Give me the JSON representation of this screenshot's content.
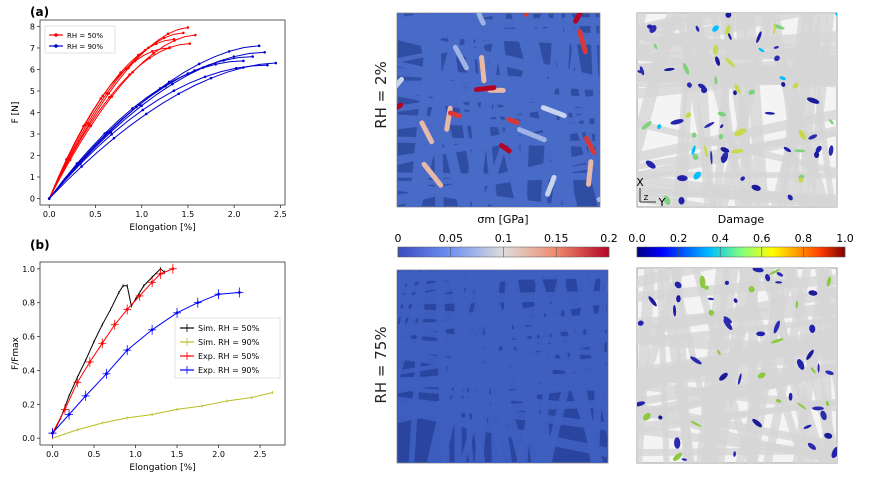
{
  "chart_data": [
    {
      "type": "line",
      "panel_label": "(a)",
      "xlabel": "Elongation [%]",
      "ylabel": "F [N]",
      "xlim": [
        -0.1,
        2.55
      ],
      "ylim": [
        -0.3,
        8.3
      ],
      "xticks": [
        "0.0",
        "0.5",
        "1.0",
        "1.5",
        "2.0",
        "2.5"
      ],
      "xtick_values": [
        0,
        0.5,
        1,
        1.5,
        2,
        2.5
      ],
      "yticks": [
        "0",
        "1",
        "2",
        "3",
        "4",
        "5",
        "6",
        "7",
        "8"
      ],
      "ytick_values": [
        0,
        1,
        2,
        3,
        4,
        5,
        6,
        7,
        8
      ],
      "legend_position": "top-left",
      "series": [
        {
          "name": "RH = 50%",
          "color": "#ff0000",
          "curves": [
            [
              1.5,
              7.95
            ],
            [
              1.58,
              7.6
            ],
            [
              1.45,
              7.7
            ],
            [
              1.35,
              7.4
            ],
            [
              1.52,
              7.2
            ],
            [
              1.3,
              7.0
            ]
          ]
        },
        {
          "name": "RH = 90%",
          "color": "#0000cc",
          "curves": [
            [
              2.27,
              7.1
            ],
            [
              2.45,
              6.3
            ],
            [
              2.33,
              6.8
            ],
            [
              2.2,
              6.6
            ],
            [
              2.1,
              6.4
            ],
            [
              2.36,
              6.2
            ]
          ]
        }
      ]
    },
    {
      "type": "line",
      "panel_label": "(b)",
      "xlabel": "Elongation [%]",
      "ylabel": "F/Fmax",
      "xlim": [
        -0.15,
        2.8
      ],
      "ylim": [
        -0.04,
        1.04
      ],
      "xticks": [
        "0.0",
        "0.5",
        "1.0",
        "1.5",
        "2.0",
        "2.5"
      ],
      "xtick_values": [
        0,
        0.5,
        1,
        1.5,
        2,
        2.5
      ],
      "yticks": [
        "0.0",
        "0.2",
        "0.4",
        "0.6",
        "0.8",
        "1.0"
      ],
      "ytick_values": [
        0,
        0.2,
        0.4,
        0.6,
        0.8,
        1.0
      ],
      "legend_position": "center-right",
      "series": [
        {
          "name": "Sim. RH = 50%",
          "color": "#000000",
          "x": [
            0,
            0.1,
            0.2,
            0.3,
            0.4,
            0.5,
            0.6,
            0.7,
            0.8,
            0.85,
            0.9,
            0.95,
            1.0,
            1.1,
            1.2,
            1.3,
            1.35
          ],
          "y": [
            0.02,
            0.12,
            0.25,
            0.36,
            0.46,
            0.57,
            0.67,
            0.76,
            0.86,
            0.9,
            0.9,
            0.78,
            0.82,
            0.9,
            0.95,
            1.0,
            0.98
          ]
        },
        {
          "name": "Sim. RH = 90%",
          "color": "#bcbd22",
          "x": [
            0,
            0.3,
            0.6,
            0.9,
            1.2,
            1.5,
            1.8,
            2.1,
            2.4,
            2.65
          ],
          "y": [
            0.0,
            0.05,
            0.09,
            0.12,
            0.14,
            0.17,
            0.19,
            0.22,
            0.24,
            0.27
          ]
        },
        {
          "name": "Exp. RH = 50%",
          "color": "#ff0000",
          "x": [
            0,
            0.15,
            0.3,
            0.45,
            0.6,
            0.75,
            0.9,
            1.05,
            1.2,
            1.3,
            1.45
          ],
          "y": [
            0.03,
            0.17,
            0.33,
            0.45,
            0.56,
            0.67,
            0.76,
            0.84,
            0.92,
            0.97,
            1.0
          ]
        },
        {
          "name": "Exp. RH = 90%",
          "color": "#0000ff",
          "x": [
            0,
            0.2,
            0.4,
            0.65,
            0.9,
            1.2,
            1.5,
            1.75,
            2.0,
            2.25
          ],
          "y": [
            0.03,
            0.14,
            0.25,
            0.38,
            0.52,
            0.64,
            0.74,
            0.8,
            0.85,
            0.86
          ]
        }
      ]
    }
  ],
  "figure": {
    "row_labels": [
      "RH = 2%",
      "RH = 75%"
    ],
    "stress_colorbar": {
      "title": "σm [GPa]",
      "ticks": [
        "0",
        "0.05",
        "0.1",
        "0.15",
        "0.2"
      ],
      "colors": [
        "#3a4cc0",
        "#6f92f3",
        "#dddddd",
        "#f08a6c",
        "#b40426"
      ]
    },
    "damage_colorbar": {
      "title": "Damage",
      "ticks": [
        "0.0",
        "0.2",
        "0.4",
        "0.6",
        "0.8",
        "1.0"
      ],
      "colors": [
        "#00007f",
        "#0000ff",
        "#00bfff",
        "#7fff7f",
        "#ffff00",
        "#ff4000",
        "#7f0000"
      ]
    },
    "axes_triad": {
      "x_label": "X",
      "y_label": "Y",
      "z_label": "Z"
    }
  }
}
